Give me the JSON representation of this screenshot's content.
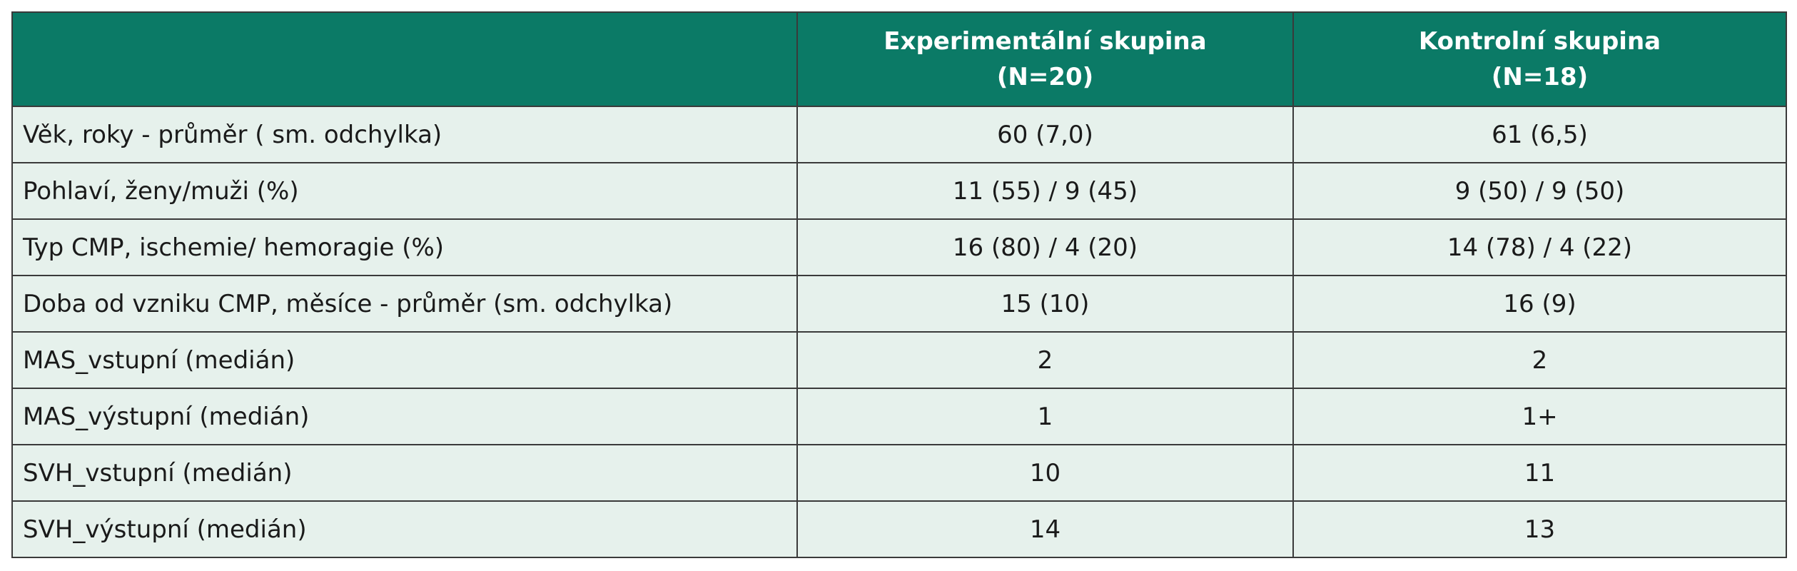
{
  "table": {
    "header": [
      {
        "lines": [
          "Experimentální skupina",
          "(N=20)"
        ]
      },
      {
        "lines": [
          "Kontrolní skupina",
          "(N=18)"
        ]
      }
    ],
    "rows": [
      [
        "Věk, roky - průměr ( sm. odchylka)",
        "60 (7,0)",
        "61 (6,5)"
      ],
      [
        "Pohlaví, ženy/muži (%)",
        "11 (55) / 9 (45)",
        "9 (50) / 9 (50)"
      ],
      [
        "Typ CMP, ischemie/ hemoragie (%)",
        "16 (80) / 4 (20)",
        "14 (78) / 4 (22)"
      ],
      [
        "Doba od vzniku CMP, měsíce - průměr (sm. odchylka)",
        "15 (10)",
        "16 (9)"
      ],
      [
        "MAS_vstupní (medián)",
        "2",
        "2"
      ],
      [
        "MAS_výstupní (medián)",
        "1",
        "1+"
      ],
      [
        "SVH_vstupní (medián)",
        "10",
        "11"
      ],
      [
        "SVH_výstupní (medián)",
        "14",
        "13"
      ]
    ]
  }
}
